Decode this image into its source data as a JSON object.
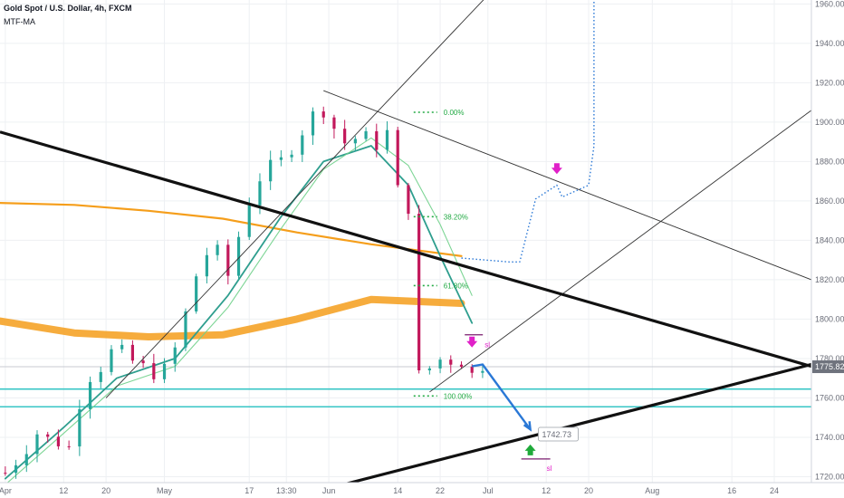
{
  "header": {
    "title": "Gold Spot / U.S. Dollar, 4h, FXCM",
    "indicator": "MTF-MA"
  },
  "colors": {
    "up": "#26a69a",
    "down": "#c2185b",
    "mtf_ma": "#f59e1b",
    "ema": "#2e9e8e",
    "support": "#38c6c6",
    "trend": "#111111",
    "channel": "#333333",
    "forecast": "#2a78d6",
    "fib": "#22aa44",
    "sell_marker": "#e020c8",
    "buy_marker": "#1faa3a"
  },
  "chart_data": {
    "type": "candlestick",
    "symbol": "Gold Spot / U.S. Dollar",
    "timeframe": "4h",
    "source": "FXCM",
    "indicators": [
      "MTF-MA"
    ],
    "y_axis": {
      "ticks": [
        1720,
        1740,
        1760,
        1780,
        1800,
        1820,
        1840,
        1860,
        1880,
        1900,
        1920,
        1940,
        1960
      ],
      "tick_labels": [
        "1720.00",
        "1740.00",
        "1760.00",
        "1780.00",
        "1800.00",
        "1820.00",
        "1840.00",
        "1860.00",
        "1880.00",
        "1900.00",
        "1920.00",
        "1940.00",
        "1960.00"
      ],
      "range": [
        1717,
        1962
      ]
    },
    "x_axis": {
      "labels": [
        {
          "label": "Apr",
          "date": "2021-04-01"
        },
        {
          "label": "12",
          "date": "2021-04-12"
        },
        {
          "label": "20",
          "date": "2021-04-20"
        },
        {
          "label": "May",
          "date": "2021-05-01"
        },
        {
          "label": "17",
          "date": "2021-05-17"
        },
        {
          "label": "13:30",
          "date": "2021-05-24"
        },
        {
          "label": "Jun",
          "date": "2021-06-01"
        },
        {
          "label": "14",
          "date": "2021-06-14"
        },
        {
          "label": "22",
          "date": "2021-06-22"
        },
        {
          "label": "Jul",
          "date": "2021-07-01"
        },
        {
          "label": "12",
          "date": "2021-07-12"
        },
        {
          "label": "20",
          "date": "2021-07-20"
        },
        {
          "label": "Aug",
          "date": "2021-08-01"
        },
        {
          "label": "16",
          "date": "2021-08-16"
        },
        {
          "label": "24",
          "date": "2021-08-24"
        }
      ],
      "range": [
        "2021-03-31",
        "2021-08-31"
      ]
    },
    "price_path": [
      [
        "2021-04-01",
        1722
      ],
      [
        "2021-04-04",
        1730
      ],
      [
        "2021-04-07",
        1742
      ],
      [
        "2021-04-10",
        1738
      ],
      [
        "2021-04-13",
        1735
      ],
      [
        "2021-04-16",
        1768
      ],
      [
        "2021-04-19",
        1775
      ],
      [
        "2021-04-22",
        1788
      ],
      [
        "2021-04-24",
        1780
      ],
      [
        "2021-04-27",
        1776
      ],
      [
        "2021-04-30",
        1770
      ],
      [
        "2021-05-03",
        1785
      ],
      [
        "2021-05-06",
        1812
      ],
      [
        "2021-05-08",
        1832
      ],
      [
        "2021-05-11",
        1835
      ],
      [
        "2021-05-13",
        1822
      ],
      [
        "2021-05-15",
        1842
      ],
      [
        "2021-05-18",
        1868
      ],
      [
        "2021-05-21",
        1878
      ],
      [
        "2021-05-24",
        1882
      ],
      [
        "2021-05-27",
        1895
      ],
      [
        "2021-05-29",
        1904
      ],
      [
        "2021-06-01",
        1906
      ],
      [
        "2021-06-03",
        1888
      ],
      [
        "2021-06-05",
        1891
      ],
      [
        "2021-06-08",
        1893
      ],
      [
        "2021-06-10",
        1888
      ],
      [
        "2021-06-12",
        1895
      ],
      [
        "2021-06-14",
        1866
      ],
      [
        "2021-06-16",
        1856
      ],
      [
        "2021-06-17",
        1815
      ],
      [
        "2021-06-18",
        1772
      ],
      [
        "2021-06-19",
        1768
      ],
      [
        "2021-06-21",
        1782
      ],
      [
        "2021-06-23",
        1777
      ],
      [
        "2021-06-25",
        1780
      ],
      [
        "2021-06-27",
        1776
      ],
      [
        "2021-06-29",
        1768
      ],
      [
        "2021-06-30",
        1776
      ]
    ],
    "series": [
      {
        "name": "MTF-MA",
        "values": [
          [
            "2021-03-31",
            1859
          ],
          [
            "2021-04-14",
            1858
          ],
          [
            "2021-04-28",
            1855
          ],
          [
            "2021-05-12",
            1851
          ],
          [
            "2021-05-26",
            1844
          ],
          [
            "2021-06-09",
            1838
          ],
          [
            "2021-06-26",
            1832
          ]
        ]
      },
      {
        "name": "MTF-MA",
        "values": [
          [
            "2021-03-31",
            1799
          ],
          [
            "2021-04-14",
            1793
          ],
          [
            "2021-04-28",
            1791
          ],
          [
            "2021-05-12",
            1792
          ],
          [
            "2021-05-26",
            1800
          ],
          [
            "2021-06-09",
            1810
          ],
          [
            "2021-06-26",
            1808
          ]
        ]
      },
      {
        "values": [
          [
            "2021-04-01",
            1719
          ],
          [
            "2021-04-12",
            1745
          ],
          [
            "2021-04-22",
            1770
          ],
          [
            "2021-05-03",
            1780
          ],
          [
            "2021-05-13",
            1812
          ],
          [
            "2021-05-23",
            1852
          ],
          [
            "2021-05-31",
            1880
          ],
          [
            "2021-06-09",
            1888
          ],
          [
            "2021-06-16",
            1868
          ],
          [
            "2021-06-22",
            1832
          ],
          [
            "2021-06-28",
            1798
          ]
        ]
      },
      {
        "values": [
          [
            "2021-04-01",
            1716
          ],
          [
            "2021-04-12",
            1742
          ],
          [
            "2021-04-22",
            1766
          ],
          [
            "2021-05-03",
            1776
          ],
          [
            "2021-05-13",
            1806
          ],
          [
            "2021-05-23",
            1846
          ],
          [
            "2021-05-31",
            1876
          ],
          [
            "2021-06-09",
            1892
          ],
          [
            "2021-06-16",
            1878
          ],
          [
            "2021-06-22",
            1848
          ],
          [
            "2021-06-28",
            1812
          ]
        ]
      }
    ],
    "current_price": {
      "value": 1775.82,
      "label": "1775.82"
    },
    "horizontal_lines": [
      1764.5,
      1755.5
    ],
    "fibonacci": [
      {
        "label": "0.00%",
        "value": 1905,
        "date": "2021-06-17"
      },
      {
        "label": "38.20%",
        "value": 1852,
        "date": "2021-06-17"
      },
      {
        "label": "61.80%",
        "value": 1817,
        "date": "2021-06-17"
      },
      {
        "label": "100.00%",
        "value": 1761,
        "date": "2021-06-17"
      }
    ],
    "trend_lines": [
      {
        "from": [
          "2021-03-31",
          1895
        ],
        "to": [
          "2021-08-31",
          1776
        ]
      },
      {
        "from": [
          "2021-05-26",
          1710
        ],
        "to": [
          "2021-08-31",
          1777
        ]
      }
    ],
    "channel_lines": [
      {
        "from": [
          "2021-04-20",
          1760
        ],
        "to": [
          "2021-07-10",
          1990
        ]
      },
      {
        "from": [
          "2021-06-20",
          1763
        ],
        "to": [
          "2021-08-31",
          1906
        ]
      },
      {
        "from": [
          "2021-05-31",
          1916
        ],
        "to": [
          "2021-08-31",
          1820
        ]
      }
    ],
    "forecast_paths": [
      {
        "style": "solid",
        "points": [
          [
            "2021-06-28",
            1776
          ],
          [
            "2021-06-30",
            1777
          ],
          [
            "2021-07-09",
            1744
          ]
        ]
      },
      {
        "style": "dotted",
        "points": [
          [
            "2021-06-26",
            1831
          ],
          [
            "2021-07-05",
            1829
          ],
          [
            "2021-07-07",
            1829
          ],
          [
            "2021-07-10",
            1861
          ],
          [
            "2021-07-14",
            1868
          ],
          [
            "2021-07-15",
            1862
          ],
          [
            "2021-07-20",
            1868
          ],
          [
            "2021-07-21",
            1888
          ],
          [
            "2021-07-21",
            1962
          ]
        ]
      }
    ],
    "price_label": {
      "value": 1742.73,
      "label": "1742.73",
      "date": "2021-07-10"
    },
    "markers": [
      {
        "kind": "sell",
        "date": "2021-06-28",
        "value": 1787,
        "label": "sl"
      },
      {
        "kind": "sell",
        "date": "2021-07-14",
        "value": 1875
      },
      {
        "kind": "buy",
        "date": "2021-07-09",
        "value": 1735,
        "label": "sl"
      }
    ]
  }
}
